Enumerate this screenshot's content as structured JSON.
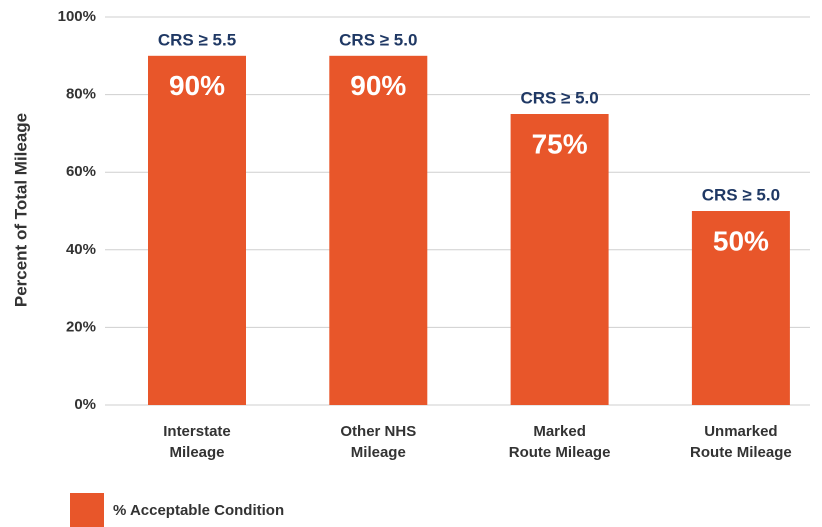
{
  "chart_data": {
    "type": "bar",
    "y_axis_label": "Percent of Total Mileage",
    "categories": [
      "Interstate\nMileage",
      "Other NHS\nMileage",
      "Marked\nRoute Mileage",
      "Unmarked\nRoute Mileage"
    ],
    "series": [
      {
        "name": "% Acceptable Condition",
        "color": "#e8562a",
        "values": [
          90,
          90,
          75,
          50
        ],
        "value_labels": [
          "90%",
          "90%",
          "75%",
          "50%"
        ]
      }
    ],
    "bar_annotations": [
      "CRS ≥ 5.5",
      "CRS ≥ 5.0",
      "CRS ≥ 5.0",
      "CRS ≥ 5.0"
    ],
    "ylim": [
      0,
      100
    ],
    "yticks": [
      {
        "value": 0,
        "label": "0%"
      },
      {
        "value": 20,
        "label": "20%"
      },
      {
        "value": 40,
        "label": "40%"
      },
      {
        "value": 60,
        "label": "60%"
      },
      {
        "value": 80,
        "label": "80%"
      },
      {
        "value": 100,
        "label": "100%"
      }
    ],
    "grid": true
  }
}
